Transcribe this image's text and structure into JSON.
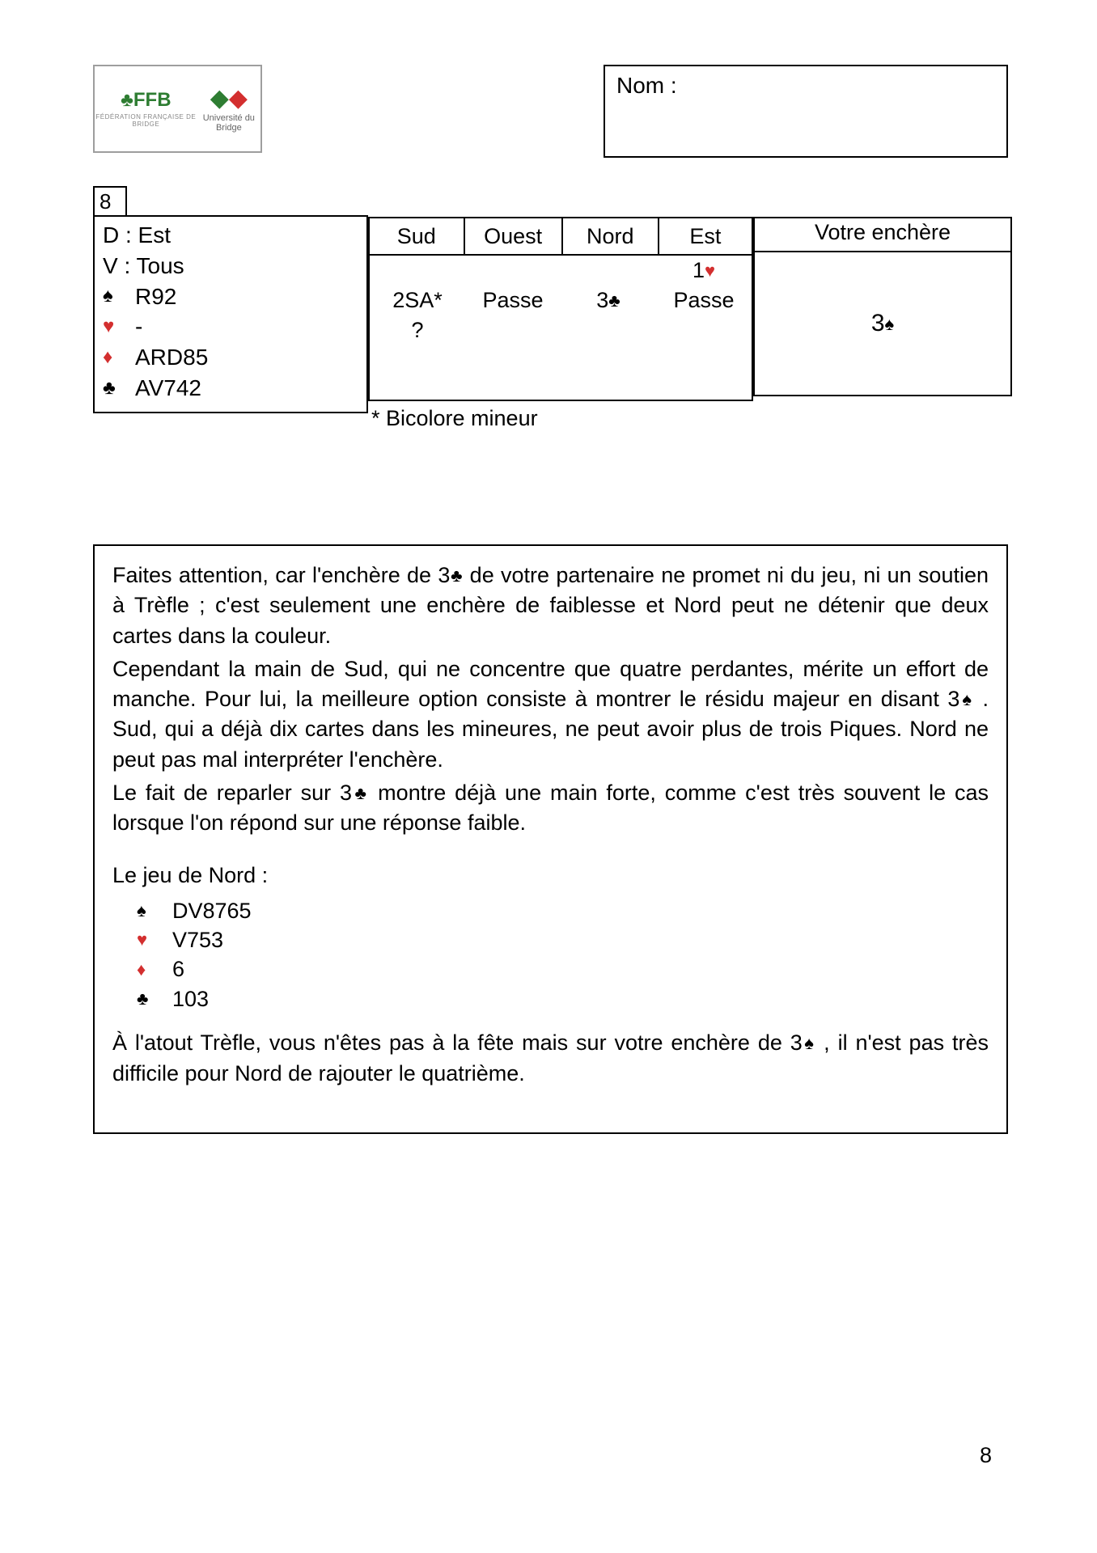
{
  "colors": {
    "black": "#000000",
    "red": "#d32f2f",
    "logo_green": "#2e7d32",
    "border_gray": "#9e9e9e"
  },
  "header": {
    "logo_left_label": "FFB",
    "logo_left_sub": "FÉDÉRATION FRANÇAISE DE BRIDGE",
    "logo_right_label": "Université du Bridge",
    "nom_label": "Nom :"
  },
  "deal": {
    "number": "8",
    "dealer_line": "D : Est",
    "vuln_line": "V : Tous",
    "hand": {
      "spades": "R92",
      "hearts": "-",
      "diamonds": "ARD85",
      "clubs": "AV742"
    }
  },
  "suits": {
    "spade": "♠",
    "heart": "♥",
    "diamond": "♦",
    "club": "♣"
  },
  "bidding": {
    "headers": [
      "Sud",
      "Ouest",
      "Nord",
      "Est"
    ],
    "rows": [
      [
        "",
        "",
        "",
        "1♥"
      ],
      [
        "2SA*",
        "Passe",
        "3♣",
        "Passe"
      ],
      [
        "?",
        "",
        "",
        ""
      ]
    ],
    "footnote": "* Bicolore mineur"
  },
  "answer": {
    "title": "Votre enchère",
    "value": "3♠"
  },
  "explanation": {
    "p1_a": "Faites attention, car l'enchère de 3",
    "p1_b": " de votre partenaire ne promet ni du jeu, ni un soutien à Trèfle ; c'est seulement une enchère de faiblesse et Nord peut ne détenir que deux cartes dans la couleur.",
    "p2_a": "Cependant la main de Sud, qui ne concentre que quatre perdantes, mérite un effort de manche. Pour lui, la meilleure option consiste à montrer le résidu majeur en disant 3",
    "p2_b": " . Sud, qui a déjà dix cartes dans les mineures, ne peut avoir plus de trois Piques. Nord ne peut pas mal interpréter l'enchère.",
    "p3_a": "Le fait de reparler sur 3",
    "p3_b": "  montre déjà une main forte, comme c'est très souvent le cas lorsque l'on répond sur une réponse faible.",
    "nord_intro": "Le jeu de Nord :",
    "nord_hand": {
      "spades": "DV8765",
      "hearts": "V753",
      "diamonds": "6",
      "clubs": "103"
    },
    "p4_a": "À l'atout Trèfle, vous n'êtes pas à la fête mais sur votre enchère de 3",
    "p4_b": " , il n'est pas très difficile pour Nord de rajouter le quatrième."
  },
  "page_number": "8"
}
